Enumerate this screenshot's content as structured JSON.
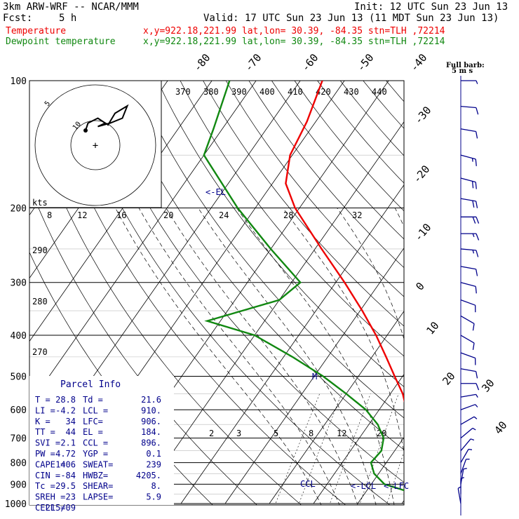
{
  "header": {
    "model": "3km ARW-WRF -- NCAR/MMM",
    "init": "Init: 12 UTC Sun 23 Jun 13",
    "fcst_label": "Fcst:",
    "fcst_value": "5 h",
    "valid": "Valid: 17 UTC Sun 23 Jun 13 (11 MDT Sun 23 Jun 13)",
    "temp_label": "Temperature",
    "temp_info": "x,y=922.18,221.99   lat,lon= 30.39, -84.35   stn=TLH ,72214",
    "dew_label": "Dewpoint temperature",
    "dew_info": "x,y=922.18,221.99   lat,lon= 30.39, -84.35   stn=TLH ,72214",
    "full_barb": "Full barb:",
    "full_barb_unit": "5 m s"
  },
  "colors": {
    "temperature": "#ee0000",
    "dewpoint": "#118811",
    "text": "#000000",
    "accent": "#00008b",
    "hodograph": "#000000"
  },
  "chart_data": {
    "type": "skew-t",
    "pressure_levels": [
      "100",
      "200",
      "300",
      "400",
      "500",
      "600",
      "700",
      "800",
      "900",
      "1000"
    ],
    "isotherm_labels": [
      "-80",
      "-70",
      "-60",
      "-50",
      "-40",
      "-30",
      "-20",
      "-10",
      "0",
      "10",
      "20",
      "30",
      "40"
    ],
    "theta_labels": [
      "370",
      "380",
      "390",
      "400",
      "410",
      "420",
      "430",
      "440"
    ],
    "theta_e_labels": [
      "290",
      "280",
      "270"
    ],
    "mixing_ratio_upper": [
      "8",
      "12",
      "16",
      "20",
      "24",
      "28",
      "32"
    ],
    "mixing_ratio_lower": [
      "2",
      "3",
      "5",
      "8",
      "12",
      "20"
    ],
    "temperature": [
      {
        "p": 1000,
        "t": 32.5
      },
      {
        "p": 950,
        "t": 28.8
      },
      {
        "p": 900,
        "t": 25.0
      },
      {
        "p": 850,
        "t": 21.5
      },
      {
        "p": 800,
        "t": 18.5
      },
      {
        "p": 750,
        "t": 15.8
      },
      {
        "p": 700,
        "t": 12.5
      },
      {
        "p": 650,
        "t": 9.0
      },
      {
        "p": 600,
        "t": 6.2
      },
      {
        "p": 550,
        "t": 2.8
      },
      {
        "p": 500,
        "t": -1.8
      },
      {
        "p": 450,
        "t": -6.8
      },
      {
        "p": 400,
        "t": -12.5
      },
      {
        "p": 350,
        "t": -19.5
      },
      {
        "p": 300,
        "t": -28.0
      },
      {
        "p": 250,
        "t": -38.5
      },
      {
        "p": 200,
        "t": -51.0
      },
      {
        "p": 175,
        "t": -57.0
      },
      {
        "p": 150,
        "t": -60.5
      },
      {
        "p": 125,
        "t": -62.0
      },
      {
        "p": 100,
        "t": -65.0
      }
    ],
    "dewpoint": [
      {
        "p": 1000,
        "t": 22.5
      },
      {
        "p": 975,
        "t": 21.6
      },
      {
        "p": 950,
        "t": 21.5
      },
      {
        "p": 925,
        "t": 17.5
      },
      {
        "p": 900,
        "t": 13.0
      },
      {
        "p": 850,
        "t": 9.0
      },
      {
        "p": 800,
        "t": 6.5
      },
      {
        "p": 750,
        "t": 7.0
      },
      {
        "p": 700,
        "t": 5.5
      },
      {
        "p": 650,
        "t": 2.0
      },
      {
        "p": 600,
        "t": -3.0
      },
      {
        "p": 550,
        "t": -10.0
      },
      {
        "p": 500,
        "t": -18.0
      },
      {
        "p": 450,
        "t": -28.0
      },
      {
        "p": 400,
        "t": -40.0
      },
      {
        "p": 370,
        "t": -53.0
      },
      {
        "p": 330,
        "t": -40.0
      },
      {
        "p": 300,
        "t": -38.0
      },
      {
        "p": 250,
        "t": -50.0
      },
      {
        "p": 200,
        "t": -64.0
      },
      {
        "p": 150,
        "t": -80.0
      },
      {
        "p": 130,
        "t": -82.0
      },
      {
        "p": 100,
        "t": -86.0
      }
    ],
    "winds": [
      {
        "p": 100,
        "dir": 270,
        "spd": 5
      },
      {
        "p": 115,
        "dir": 275,
        "spd": 10
      },
      {
        "p": 130,
        "dir": 280,
        "spd": 12
      },
      {
        "p": 150,
        "dir": 285,
        "spd": 15
      },
      {
        "p": 170,
        "dir": 285,
        "spd": 20
      },
      {
        "p": 190,
        "dir": 280,
        "spd": 20
      },
      {
        "p": 210,
        "dir": 270,
        "spd": 20
      },
      {
        "p": 230,
        "dir": 270,
        "spd": 15
      },
      {
        "p": 250,
        "dir": 275,
        "spd": 15
      },
      {
        "p": 275,
        "dir": 280,
        "spd": 10
      },
      {
        "p": 300,
        "dir": 285,
        "spd": 10
      },
      {
        "p": 330,
        "dir": 290,
        "spd": 10
      },
      {
        "p": 360,
        "dir": 300,
        "spd": 10
      },
      {
        "p": 400,
        "dir": 300,
        "spd": 10
      },
      {
        "p": 440,
        "dir": 290,
        "spd": 10
      },
      {
        "p": 480,
        "dir": 280,
        "spd": 10
      },
      {
        "p": 520,
        "dir": 270,
        "spd": 10
      },
      {
        "p": 560,
        "dir": 260,
        "spd": 5
      },
      {
        "p": 600,
        "dir": 250,
        "spd": 5
      },
      {
        "p": 650,
        "dir": 240,
        "spd": 5
      },
      {
        "p": 700,
        "dir": 230,
        "spd": 5
      },
      {
        "p": 750,
        "dir": 220,
        "spd": 5
      },
      {
        "p": 800,
        "dir": 210,
        "spd": 5
      },
      {
        "p": 850,
        "dir": 200,
        "spd": 5
      },
      {
        "p": 900,
        "dir": 190,
        "spd": 5
      },
      {
        "p": 950,
        "dir": 180,
        "spd": 5
      },
      {
        "p": 1000,
        "dir": 170,
        "spd": 5
      }
    ],
    "annotations": {
      "el": "<-EL",
      "lcl": "<-LCL",
      "lfc": "<-LFC",
      "ccl": "CCL",
      "m": "M"
    },
    "hodograph": {
      "unit": "kts",
      "ring_labels": [
        "10",
        "5"
      ],
      "points": [
        [
          -2,
          3
        ],
        [
          -1.5,
          4.5
        ],
        [
          0.5,
          5.5
        ],
        [
          2,
          4.5
        ],
        [
          0.5,
          3.8
        ],
        [
          3,
          4.5
        ],
        [
          5.5,
          5.5
        ],
        [
          6.5,
          8
        ],
        [
          4,
          6.5
        ],
        [
          2.5,
          4
        ]
      ]
    },
    "parcel_info": {
      "title": "Parcel Info",
      "rows": [
        [
          "T  =",
          "28.8",
          "Td =",
          "21.6"
        ],
        [
          "LI =",
          "-4.2",
          "LCL =",
          "910."
        ],
        [
          "K  =",
          "34",
          "LFC=",
          "906."
        ],
        [
          "TT =",
          "44",
          "EL =",
          "184."
        ],
        [
          "SVI =",
          "2.1",
          "CCL =",
          "896."
        ],
        [
          "PW =",
          "4.72",
          "YGP =",
          "0.1"
        ],
        [
          "CAPE =",
          "1406",
          "SWEAT=",
          "239"
        ],
        [
          "CIN =",
          "-84",
          "HWBZ=",
          "4205."
        ],
        [
          "Tc =",
          "29.5",
          "SHEAR=",
          "8."
        ],
        [
          "SREH =",
          "23",
          "LAPSE=",
          "5.9"
        ],
        [
          "CELL =",
          "215/09",
          "",
          ""
        ]
      ]
    }
  }
}
